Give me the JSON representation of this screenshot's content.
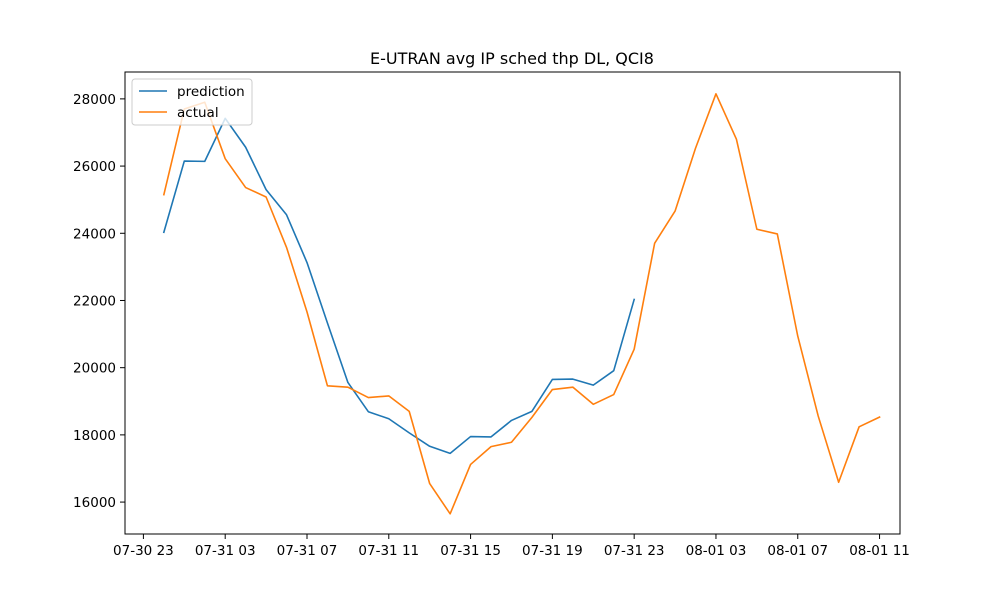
{
  "chart_data": {
    "type": "line",
    "title": "E-UTRAN avg IP sched thp DL, QCI8",
    "xlabel": "",
    "ylabel": "",
    "x_axis_type": "datetime-hourly",
    "x_ticks": [
      "07-30 23",
      "07-31 03",
      "07-31 07",
      "07-31 11",
      "07-31 15",
      "07-31 19",
      "07-31 23",
      "08-01 03",
      "08-01 07",
      "08-01 11"
    ],
    "y_ticks": [
      16000,
      18000,
      20000,
      22000,
      24000,
      26000,
      28000
    ],
    "xlim": [
      "07-30 22:06",
      "08-01 12:00"
    ],
    "ylim": [
      15050,
      28800
    ],
    "grid": false,
    "legend_position": "top-left",
    "series": [
      {
        "name": "prediction",
        "color": "#1f77b4",
        "x": [
          "07-31 00",
          "07-31 01",
          "07-31 02",
          "07-31 03",
          "07-31 04",
          "07-31 05",
          "07-31 06",
          "07-31 07",
          "07-31 08",
          "07-31 09",
          "07-31 10",
          "07-31 11",
          "07-31 12",
          "07-31 13",
          "07-31 14",
          "07-31 15",
          "07-31 16",
          "07-31 17",
          "07-31 18",
          "07-31 19",
          "07-31 20",
          "07-31 21",
          "07-31 22",
          "07-31 23"
        ],
        "values": [
          24030,
          26150,
          26140,
          27420,
          26560,
          25300,
          24550,
          23130,
          21330,
          19560,
          18690,
          18480,
          18060,
          17660,
          17450,
          17950,
          17940,
          18430,
          18700,
          19650,
          19660,
          19480,
          19910,
          22030
        ]
      },
      {
        "name": "actual",
        "color": "#ff7f0e",
        "x": [
          "07-31 00",
          "07-31 01",
          "07-31 02",
          "07-31 03",
          "07-31 04",
          "07-31 05",
          "07-31 06",
          "07-31 07",
          "07-31 08",
          "07-31 09",
          "07-31 10",
          "07-31 11",
          "07-31 12",
          "07-31 13",
          "07-31 14",
          "07-31 15",
          "07-31 16",
          "07-31 17",
          "07-31 18",
          "07-31 19",
          "07-31 20",
          "07-31 21",
          "07-31 22",
          "07-31 23",
          "08-01 00",
          "08-01 01",
          "08-01 02",
          "08-01 03",
          "08-01 04",
          "08-01 05",
          "08-01 06",
          "08-01 07",
          "08-01 08",
          "08-01 09",
          "08-01 10",
          "08-01 11"
        ],
        "values": [
          25150,
          27700,
          27900,
          26220,
          25360,
          25080,
          23580,
          21660,
          19460,
          19420,
          19110,
          19160,
          18700,
          16550,
          15650,
          17120,
          17650,
          17780,
          18520,
          19350,
          19420,
          18910,
          19200,
          20550,
          23700,
          24660,
          26530,
          28150,
          26800,
          24120,
          23980,
          20940,
          18560,
          16590,
          18240,
          18530
        ]
      }
    ]
  }
}
